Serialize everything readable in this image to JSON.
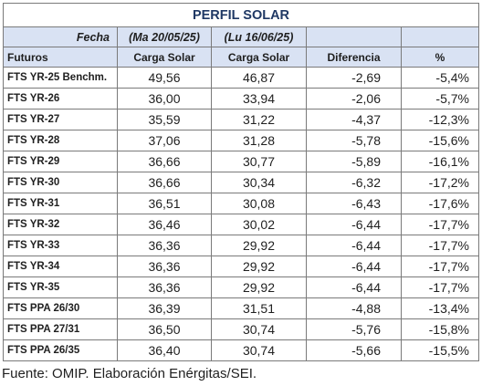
{
  "title": "PERFIL SOLAR",
  "header_row1": {
    "label": "Fecha",
    "date_col1": "(Ma 20/05/25)",
    "date_col2": "(Lu 16/06/25)"
  },
  "header_row2": {
    "futures": "Futuros",
    "col1": "Carga Solar",
    "col2": "Carga Solar",
    "diff": "Diferencia",
    "pct": "%"
  },
  "rows": [
    {
      "name": "FTS YR-25 Benchm.",
      "v1": "49,56",
      "v2": "46,87",
      "diff": "-2,69",
      "pct": "-5,4%"
    },
    {
      "name": "FTS YR-26",
      "v1": "36,00",
      "v2": "33,94",
      "diff": "-2,06",
      "pct": "-5,7%"
    },
    {
      "name": "FTS YR-27",
      "v1": "35,59",
      "v2": "31,22",
      "diff": "-4,37",
      "pct": "-12,3%"
    },
    {
      "name": "FTS YR-28",
      "v1": "37,06",
      "v2": "31,28",
      "diff": "-5,78",
      "pct": "-15,6%"
    },
    {
      "name": "FTS YR-29",
      "v1": "36,66",
      "v2": "30,77",
      "diff": "-5,89",
      "pct": "-16,1%"
    },
    {
      "name": "FTS YR-30",
      "v1": "36,66",
      "v2": "30,34",
      "diff": "-6,32",
      "pct": "-17,2%"
    },
    {
      "name": "FTS YR-31",
      "v1": "36,51",
      "v2": "30,08",
      "diff": "-6,43",
      "pct": "-17,6%"
    },
    {
      "name": "FTS YR-32",
      "v1": "36,46",
      "v2": "30,02",
      "diff": "-6,44",
      "pct": "-17,7%"
    },
    {
      "name": "FTS YR-33",
      "v1": "36,36",
      "v2": "29,92",
      "diff": "-6,44",
      "pct": "-17,7%"
    },
    {
      "name": "FTS YR-34",
      "v1": "36,36",
      "v2": "29,92",
      "diff": "-6,44",
      "pct": "-17,7%"
    },
    {
      "name": "FTS YR-35",
      "v1": "36,36",
      "v2": "29,92",
      "diff": "-6,44",
      "pct": "-17,7%"
    },
    {
      "name": "FTS PPA 26/30",
      "v1": "36,39",
      "v2": "31,51",
      "diff": "-4,88",
      "pct": "-13,4%"
    },
    {
      "name": "FTS PPA 27/31",
      "v1": "36,50",
      "v2": "30,74",
      "diff": "-5,76",
      "pct": "-15,8%"
    },
    {
      "name": "FTS PPA 26/35",
      "v1": "36,40",
      "v2": "30,74",
      "diff": "-5,66",
      "pct": "-15,5%"
    }
  ],
  "source": "Fuente: OMIP. Elaboración Enérgitas/SEI."
}
